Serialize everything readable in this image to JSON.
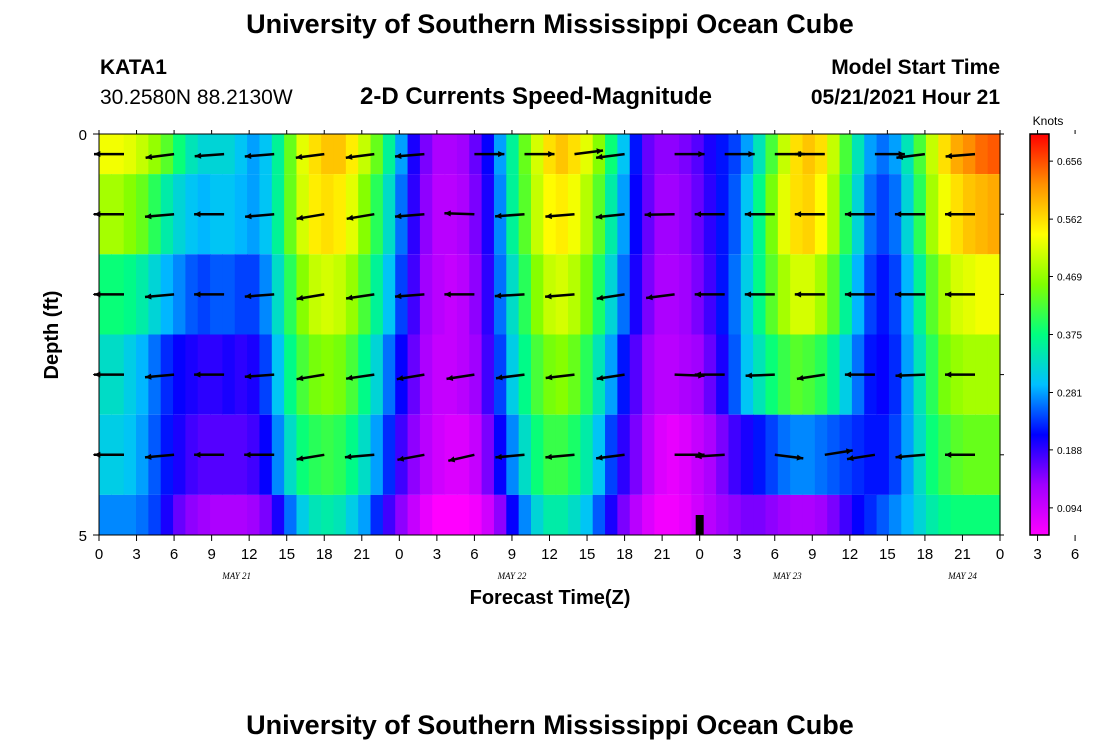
{
  "page": {
    "title_top": "University of Southern Mississippi Ocean Cube",
    "title_bottom": "University of Southern Mississippi Ocean Cube",
    "station_id": "KATA1",
    "station_coords": "30.2580N  88.2130W",
    "subtitle": "2-D Currents Speed-Magnitude",
    "model_start_label": "Model Start Time",
    "model_start_value": "05/21/2021 Hour 21"
  },
  "colors": {
    "palette": [
      "#ff00ff",
      "#a000ff",
      "#0000ff",
      "#00c0ff",
      "#00ff80",
      "#80ff00",
      "#ffff00",
      "#ff9000",
      "#ff0000"
    ],
    "marker": "#000000"
  },
  "chart_data": {
    "type": "heatmap",
    "title": "2-D Currents Speed-Magnitude",
    "xlabel": "Forecast Time(Z)",
    "ylabel": "Depth (ft)",
    "colorbar_label": "Knots",
    "colorbar_ticks": [
      "0.656",
      "0.562",
      "0.469",
      "0.375",
      "0.281",
      "0.188",
      "0.094"
    ],
    "colorbar_tick_values": [
      0.656,
      0.562,
      0.469,
      0.375,
      0.281,
      0.188,
      0.094
    ],
    "color_range": [
      0.05,
      0.7
    ],
    "x_range": [
      0,
      72
    ],
    "y_range": [
      0,
      5
    ],
    "x_tick_labels": [
      "0",
      "3",
      "6",
      "9",
      "12",
      "15",
      "18",
      "21",
      "0",
      "3",
      "6",
      "9",
      "12",
      "15",
      "18",
      "21",
      "0",
      "3",
      "6",
      "9",
      "12",
      "15",
      "18",
      "21",
      "0",
      "3",
      "6"
    ],
    "date_labels": [
      {
        "label": "MAY 21",
        "hour": 11
      },
      {
        "label": "MAY 22",
        "hour": 33
      },
      {
        "label": "MAY 23",
        "hour": 55
      },
      {
        "label": "MAY 24",
        "hour": 69
      }
    ],
    "y_tick_labels": [
      {
        "depth": 0,
        "label": "0"
      },
      {
        "depth": 5,
        "label": "5"
      }
    ],
    "depth_levels": [
      0.25,
      1,
      2,
      3,
      4,
      4.75
    ],
    "time_hours": [
      0,
      1,
      2,
      3,
      4,
      5,
      6,
      7,
      8,
      9,
      10,
      11,
      12,
      13,
      14,
      15,
      16,
      17,
      18,
      19,
      20,
      21,
      22,
      23,
      24,
      25,
      26,
      27,
      28,
      29,
      30,
      31,
      32,
      33,
      34,
      35,
      36,
      37,
      38,
      39,
      40,
      41,
      42,
      43,
      44,
      45,
      46,
      47,
      48,
      49,
      50,
      51,
      52,
      53,
      54,
      55,
      56,
      57,
      58,
      59,
      60,
      61,
      62,
      63,
      64,
      65,
      66,
      67,
      68,
      69,
      70,
      71,
      72
    ],
    "speed_rows": [
      [
        0.53,
        0.53,
        0.52,
        0.5,
        0.47,
        0.43,
        0.38,
        0.34,
        0.32,
        0.32,
        0.32,
        0.3,
        0.28,
        0.3,
        0.36,
        0.44,
        0.52,
        0.56,
        0.58,
        0.58,
        0.55,
        0.5,
        0.44,
        0.36,
        0.28,
        0.2,
        0.15,
        0.12,
        0.12,
        0.13,
        0.16,
        0.21,
        0.28,
        0.36,
        0.44,
        0.51,
        0.56,
        0.58,
        0.56,
        0.52,
        0.46,
        0.38,
        0.3,
        0.22,
        0.16,
        0.14,
        0.14,
        0.15,
        0.17,
        0.2,
        0.22,
        0.24,
        0.28,
        0.34,
        0.42,
        0.5,
        0.56,
        0.58,
        0.56,
        0.5,
        0.42,
        0.34,
        0.28,
        0.26,
        0.28,
        0.34,
        0.42,
        0.5,
        0.56,
        0.6,
        0.62,
        0.64,
        0.65
      ],
      [
        0.48,
        0.48,
        0.46,
        0.44,
        0.4,
        0.35,
        0.32,
        0.3,
        0.29,
        0.3,
        0.3,
        0.29,
        0.28,
        0.3,
        0.36,
        0.44,
        0.51,
        0.55,
        0.56,
        0.55,
        0.52,
        0.46,
        0.4,
        0.33,
        0.26,
        0.19,
        0.14,
        0.11,
        0.11,
        0.12,
        0.15,
        0.2,
        0.27,
        0.36,
        0.43,
        0.5,
        0.54,
        0.55,
        0.53,
        0.49,
        0.43,
        0.35,
        0.28,
        0.21,
        0.16,
        0.13,
        0.13,
        0.14,
        0.16,
        0.19,
        0.22,
        0.25,
        0.3,
        0.37,
        0.45,
        0.52,
        0.56,
        0.57,
        0.54,
        0.48,
        0.4,
        0.32,
        0.26,
        0.24,
        0.26,
        0.32,
        0.4,
        0.48,
        0.53,
        0.56,
        0.58,
        0.59,
        0.6
      ],
      [
        0.38,
        0.38,
        0.37,
        0.35,
        0.32,
        0.29,
        0.27,
        0.25,
        0.24,
        0.25,
        0.25,
        0.24,
        0.24,
        0.27,
        0.33,
        0.4,
        0.46,
        0.5,
        0.51,
        0.5,
        0.47,
        0.42,
        0.36,
        0.3,
        0.24,
        0.18,
        0.13,
        0.11,
        0.1,
        0.11,
        0.14,
        0.19,
        0.26,
        0.33,
        0.4,
        0.46,
        0.5,
        0.51,
        0.49,
        0.45,
        0.39,
        0.32,
        0.26,
        0.2,
        0.15,
        0.12,
        0.12,
        0.13,
        0.15,
        0.18,
        0.22,
        0.26,
        0.31,
        0.37,
        0.43,
        0.48,
        0.51,
        0.51,
        0.48,
        0.43,
        0.36,
        0.29,
        0.24,
        0.22,
        0.24,
        0.29,
        0.36,
        0.43,
        0.48,
        0.51,
        0.52,
        0.53,
        0.53
      ],
      [
        0.33,
        0.33,
        0.31,
        0.29,
        0.26,
        0.23,
        0.21,
        0.2,
        0.19,
        0.19,
        0.2,
        0.19,
        0.2,
        0.24,
        0.3,
        0.37,
        0.42,
        0.45,
        0.46,
        0.45,
        0.42,
        0.37,
        0.32,
        0.26,
        0.21,
        0.16,
        0.12,
        0.1,
        0.1,
        0.11,
        0.13,
        0.18,
        0.24,
        0.31,
        0.37,
        0.42,
        0.45,
        0.46,
        0.44,
        0.4,
        0.34,
        0.28,
        0.22,
        0.17,
        0.13,
        0.11,
        0.11,
        0.12,
        0.13,
        0.16,
        0.2,
        0.25,
        0.3,
        0.34,
        0.38,
        0.41,
        0.43,
        0.42,
        0.4,
        0.36,
        0.31,
        0.26,
        0.22,
        0.21,
        0.23,
        0.28,
        0.34,
        0.4,
        0.45,
        0.47,
        0.48,
        0.48,
        0.48
      ],
      [
        0.31,
        0.31,
        0.3,
        0.28,
        0.25,
        0.22,
        0.2,
        0.18,
        0.17,
        0.17,
        0.17,
        0.17,
        0.18,
        0.21,
        0.27,
        0.33,
        0.38,
        0.4,
        0.41,
        0.4,
        0.37,
        0.33,
        0.28,
        0.23,
        0.18,
        0.14,
        0.11,
        0.09,
        0.08,
        0.08,
        0.1,
        0.15,
        0.21,
        0.27,
        0.33,
        0.38,
        0.41,
        0.41,
        0.39,
        0.35,
        0.3,
        0.24,
        0.19,
        0.15,
        0.11,
        0.08,
        0.07,
        0.08,
        0.1,
        0.12,
        0.15,
        0.18,
        0.2,
        0.22,
        0.24,
        0.26,
        0.27,
        0.27,
        0.26,
        0.25,
        0.24,
        0.23,
        0.22,
        0.22,
        0.24,
        0.28,
        0.33,
        0.38,
        0.41,
        0.43,
        0.44,
        0.44,
        0.44
      ],
      [
        0.27,
        0.27,
        0.27,
        0.26,
        0.24,
        0.2,
        0.16,
        0.14,
        0.13,
        0.12,
        0.12,
        0.12,
        0.13,
        0.15,
        0.2,
        0.26,
        0.31,
        0.34,
        0.35,
        0.34,
        0.31,
        0.28,
        0.23,
        0.18,
        0.14,
        0.1,
        0.07,
        0.05,
        0.05,
        0.05,
        0.06,
        0.09,
        0.14,
        0.21,
        0.27,
        0.32,
        0.35,
        0.35,
        0.33,
        0.3,
        0.25,
        0.2,
        0.15,
        0.11,
        0.08,
        0.06,
        0.06,
        0.07,
        0.09,
        0.11,
        0.13,
        0.14,
        0.15,
        0.15,
        0.14,
        0.13,
        0.12,
        0.12,
        0.13,
        0.15,
        0.18,
        0.21,
        0.23,
        0.25,
        0.27,
        0.29,
        0.32,
        0.35,
        0.37,
        0.38,
        0.38,
        0.38,
        0.38
      ]
    ],
    "vector_hours": [
      2,
      6,
      10,
      14,
      18,
      22,
      26,
      30,
      34,
      38,
      42,
      46,
      50,
      54,
      58,
      62,
      66,
      70
    ],
    "vectors": [
      [
        [
          -1,
          0
        ],
        [
          -0.95,
          0.3
        ],
        [
          -0.98,
          0.18
        ],
        [
          -0.98,
          0.2
        ],
        [
          -0.95,
          0.3
        ],
        [
          -0.95,
          0.3
        ],
        [
          -0.98,
          0.2
        ],
        [
          1,
          0
        ],
        [
          1,
          0
        ],
        [
          0.95,
          -0.3
        ],
        [
          -0.95,
          0.3
        ],
        [
          1,
          0
        ],
        [
          1,
          0
        ],
        [
          1,
          0
        ],
        [
          -1,
          0
        ],
        [
          1,
          0
        ],
        [
          -0.95,
          0.3
        ],
        [
          -0.98,
          0.2
        ]
      ],
      [
        [
          -1,
          0
        ],
        [
          -0.97,
          0.22
        ],
        [
          -1,
          0
        ],
        [
          -0.97,
          0.22
        ],
        [
          -0.92,
          0.38
        ],
        [
          -0.92,
          0.38
        ],
        [
          -0.98,
          0.2
        ],
        [
          -1,
          -0.08
        ],
        [
          -0.98,
          0.18
        ],
        [
          -0.97,
          0.2
        ],
        [
          -0.96,
          0.26
        ],
        [
          -1,
          0.05
        ],
        [
          -1,
          0
        ],
        [
          -1,
          0
        ],
        [
          -1,
          0
        ],
        [
          -1,
          0
        ],
        [
          -1,
          0
        ],
        [
          -1,
          0
        ]
      ],
      [
        [
          -1,
          0
        ],
        [
          -0.97,
          0.22
        ],
        [
          -1,
          0
        ],
        [
          -0.98,
          0.18
        ],
        [
          -0.92,
          0.38
        ],
        [
          -0.94,
          0.34
        ],
        [
          -0.98,
          0.18
        ],
        [
          -1,
          0
        ],
        [
          -0.99,
          0.14
        ],
        [
          -0.98,
          0.2
        ],
        [
          -0.93,
          0.36
        ],
        [
          -0.95,
          0.3
        ],
        [
          -1,
          0
        ],
        [
          -1,
          0
        ],
        [
          -1,
          0
        ],
        [
          -1,
          0
        ],
        [
          -1,
          0
        ],
        [
          -1,
          0
        ]
      ],
      [
        [
          -1,
          0
        ],
        [
          -0.97,
          0.22
        ],
        [
          -1,
          0
        ],
        [
          -0.98,
          0.18
        ],
        [
          -0.92,
          0.38
        ],
        [
          -0.94,
          0.34
        ],
        [
          -0.92,
          0.38
        ],
        [
          -0.93,
          0.36
        ],
        [
          -0.95,
          0.3
        ],
        [
          -0.96,
          0.28
        ],
        [
          -0.93,
          0.36
        ],
        [
          1,
          0.1
        ],
        [
          -1,
          0
        ],
        [
          -0.97,
          0.1
        ],
        [
          -0.93,
          0.36
        ],
        [
          -1,
          0
        ],
        [
          -0.98,
          0.1
        ],
        [
          -1,
          0
        ]
      ],
      [
        [
          -1,
          0
        ],
        [
          -0.97,
          0.22
        ],
        [
          -1,
          0
        ],
        [
          -1,
          0
        ],
        [
          -0.92,
          0.38
        ],
        [
          -0.98,
          0.2
        ],
        [
          -0.9,
          0.42
        ],
        [
          -0.87,
          0.5
        ],
        [
          -0.97,
          0.22
        ],
        [
          -0.97,
          0.22
        ],
        [
          -0.95,
          0.3
        ],
        [
          1,
          0
        ],
        [
          -0.98,
          0.15
        ],
        [
          0.95,
          0.3
        ],
        [
          0.93,
          -0.37
        ],
        [
          -0.93,
          0.36
        ],
        [
          -0.98,
          0.2
        ],
        [
          -1,
          0
        ]
      ]
    ],
    "marker_hour": 48,
    "marker_depth_range": [
      4.75,
      5
    ]
  }
}
